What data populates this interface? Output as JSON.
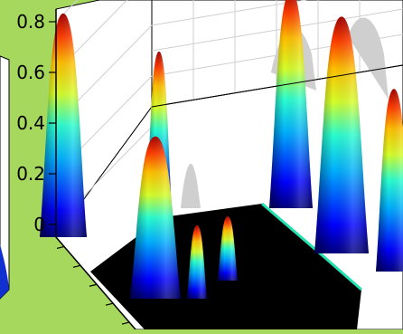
{
  "figure": {
    "background_color": "#a6d85e",
    "axes_color": "#000000",
    "grid_color": "#c8c8c8",
    "wall_color": "#ffffff",
    "colormap": "jet"
  },
  "chart_data": {
    "type": "surface",
    "zlabel": "",
    "zlim": [
      0,
      0.9
    ],
    "z_ticks": [
      "0",
      "0.2",
      "0.4",
      "0.6",
      "0.8"
    ],
    "peaks": [
      {
        "id": "left-wall-peak",
        "z": 0.85
      },
      {
        "id": "middle-tall-spike",
        "z": 0.66
      },
      {
        "id": "front-rounded-peak",
        "z": 0.45
      },
      {
        "id": "front-small-spike-1",
        "z": 0.1
      },
      {
        "id": "front-small-spike-2",
        "z": 0.11
      },
      {
        "id": "back-right-tall-peak",
        "z": 0.9
      },
      {
        "id": "right-rounded-peak",
        "z": 0.86
      },
      {
        "id": "far-right-peak",
        "z": 0.6
      }
    ]
  }
}
